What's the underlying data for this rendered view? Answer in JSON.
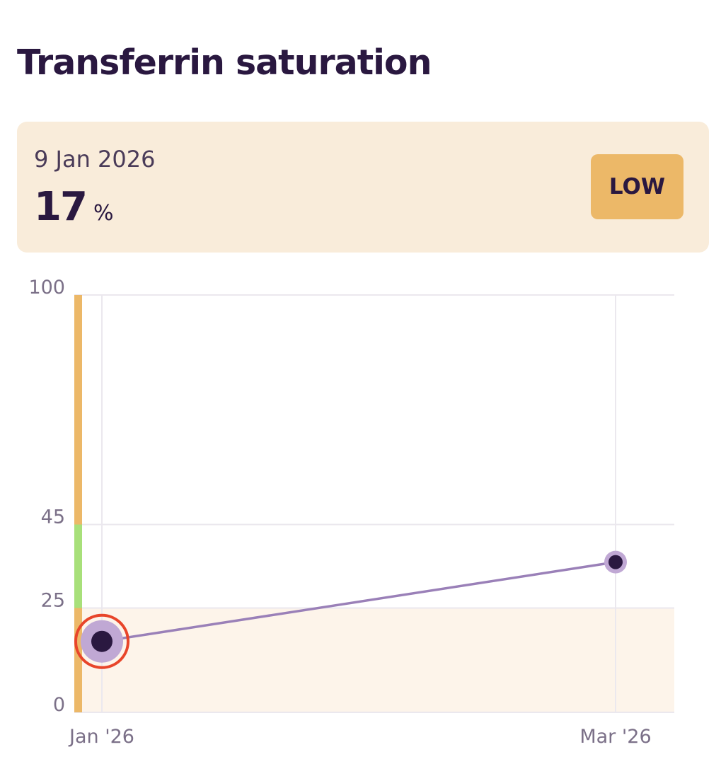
{
  "page": {
    "title": "Transferrin saturation"
  },
  "summary": {
    "date": "9 Jan 2026",
    "value": "17",
    "unit": "%",
    "status": "LOW"
  },
  "colors": {
    "title": "#2a1840",
    "card_bg": "#f9ecda",
    "badge_bg": "#ecb868",
    "low_zone": "#fdf4ea",
    "range_low": "#ecb868",
    "range_normal": "#a8e07a",
    "range_high": "#ecb868",
    "line": "#9a80b8",
    "point": "#2a1840",
    "point_halo": "#c0a8d4",
    "selection_ring": "#e8452a"
  },
  "chart_data": {
    "type": "line",
    "x": [
      "Jan '26",
      "Mar '26"
    ],
    "series": [
      {
        "values": [
          17,
          36
        ]
      }
    ],
    "ylim": [
      0,
      100
    ],
    "y_ticks": [
      0,
      25,
      45,
      100
    ],
    "x_ticks": [
      "Jan '26",
      "Mar '26"
    ],
    "reference_ranges": [
      {
        "from": 0,
        "to": 25,
        "status": "low"
      },
      {
        "from": 25,
        "to": 45,
        "status": "normal"
      },
      {
        "from": 45,
        "to": 100,
        "status": "high"
      }
    ],
    "selected_index": 0,
    "grid": true
  }
}
